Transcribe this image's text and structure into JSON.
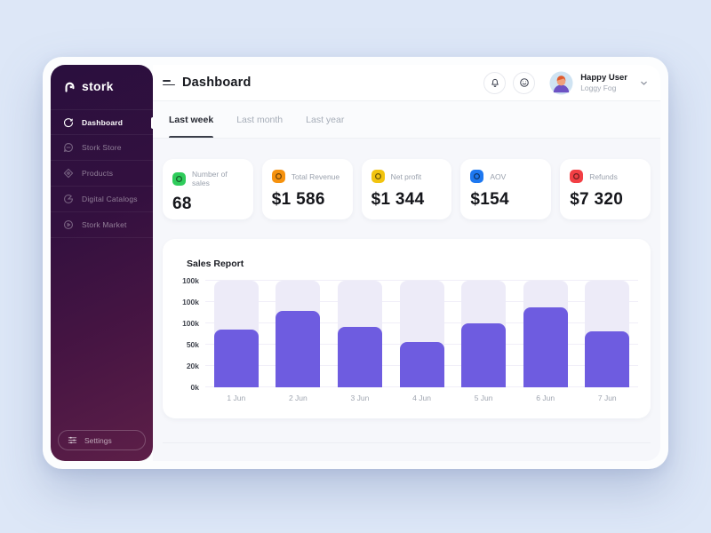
{
  "sidebar": {
    "logo_text": "stork",
    "items": [
      {
        "label": "Dashboard",
        "active": true
      },
      {
        "label": "Stork Store",
        "active": false
      },
      {
        "label": "Products",
        "active": false
      },
      {
        "label": "Digital Catalogs",
        "active": false
      },
      {
        "label": "Stork Market",
        "active": false
      }
    ],
    "settings_label": "Settings"
  },
  "header": {
    "title": "Dashboard",
    "user_name": "Happy User",
    "user_org": "Loggy Fog"
  },
  "tabs": [
    {
      "label": "Last week",
      "active": true
    },
    {
      "label": "Last month",
      "active": false
    },
    {
      "label": "Last year",
      "active": false
    }
  ],
  "stats": [
    {
      "label": "Number of sales",
      "value": "68",
      "icon_color": "#2fcc5b"
    },
    {
      "label": "Total Revenue",
      "value": "$1 586",
      "icon_color": "#f6920e"
    },
    {
      "label": "Net profit",
      "value": "$1 344",
      "icon_color": "#f2c40f"
    },
    {
      "label": "AOV",
      "value": "$154",
      "icon_color": "#1e78f0"
    },
    {
      "label": "Refunds",
      "value": "$7 320",
      "icon_color": "#f23f44"
    }
  ],
  "chart_data": {
    "type": "bar",
    "title": "Sales Report",
    "categories": [
      "1 Jun",
      "2 Jun",
      "3 Jun",
      "4 Jun",
      "5 Jun",
      "6 Jun",
      "7 Jun"
    ],
    "values": [
      65,
      86,
      68,
      51,
      72,
      90,
      63
    ],
    "ylim": [
      0,
      120
    ],
    "y_tick_labels": [
      "100k",
      "100k",
      "100k",
      "50k",
      "20k",
      "0k"
    ],
    "xlabel": "",
    "ylabel": "",
    "bar_color": "#6e5ce0",
    "track_color": "#edebf8",
    "grid": true,
    "legend_position": "none"
  }
}
